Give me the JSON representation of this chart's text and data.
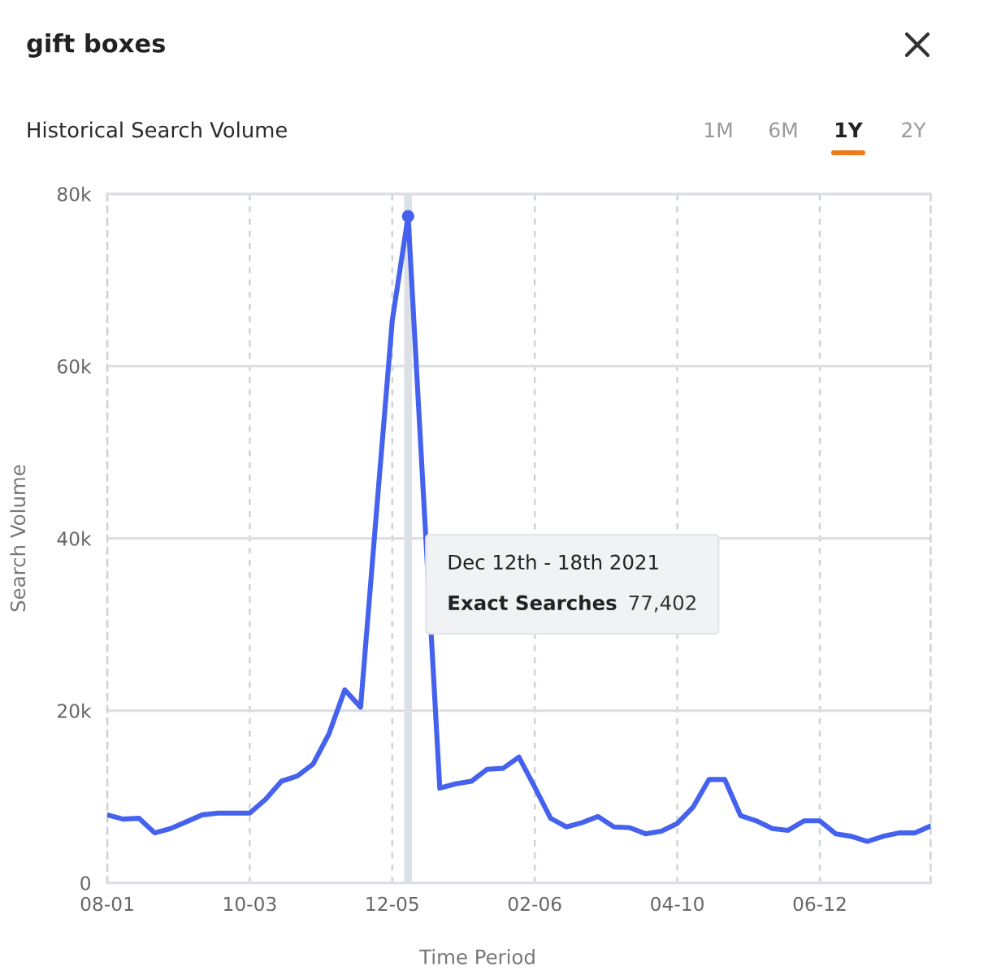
{
  "chart_data": {
    "type": "line",
    "title": "gift boxes",
    "subtitle": "Historical Search Volume",
    "xlabel": "Time Period",
    "ylabel": "Search Volume",
    "x": [
      "2021-08-01",
      "2021-08-08",
      "2021-08-15",
      "2021-08-22",
      "2021-08-29",
      "2021-09-05",
      "2021-09-12",
      "2021-09-19",
      "2021-09-26",
      "2021-10-03",
      "2021-10-10",
      "2021-10-17",
      "2021-10-24",
      "2021-10-31",
      "2021-11-07",
      "2021-11-14",
      "2021-11-21",
      "2021-11-28",
      "2021-12-05",
      "2021-12-12",
      "2021-12-19",
      "2021-12-26",
      "2022-01-02",
      "2022-01-09",
      "2022-01-16",
      "2022-01-23",
      "2022-01-30",
      "2022-02-06",
      "2022-02-13",
      "2022-02-20",
      "2022-02-27",
      "2022-03-06",
      "2022-03-13",
      "2022-03-20",
      "2022-03-27",
      "2022-04-03",
      "2022-04-10",
      "2022-04-17",
      "2022-04-24",
      "2022-05-01",
      "2022-05-08",
      "2022-05-15",
      "2022-05-22",
      "2022-05-29",
      "2022-06-05",
      "2022-06-12",
      "2022-06-19",
      "2022-06-26",
      "2022-07-03",
      "2022-07-10",
      "2022-07-17",
      "2022-07-24",
      "2022-07-31"
    ],
    "series": [
      {
        "color": "#4562ee",
        "values": [
          7900,
          7400,
          7500,
          5800,
          6300,
          7100,
          7900,
          8100,
          8100,
          8100,
          9700,
          11800,
          12400,
          13800,
          17300,
          22400,
          20400,
          43000,
          65300,
          77402,
          44000,
          11000,
          11500,
          11800,
          13200,
          13300,
          14600,
          11100,
          7500,
          6500,
          7000,
          7700,
          6500,
          6400,
          5700,
          6000,
          6900,
          8800,
          12000,
          12000,
          7800,
          7200,
          6300,
          6100,
          7200,
          7200,
          5700,
          5400,
          4800,
          5400,
          5800,
          5800,
          6600
        ]
      }
    ],
    "xlim": [
      "2021-08-01",
      "2022-07-31"
    ],
    "xticks": [
      {
        "value": "2021-08-01",
        "label": "08-01"
      },
      {
        "value": "2021-10-03",
        "label": "10-03"
      },
      {
        "value": "2021-12-05",
        "label": "12-05"
      },
      {
        "value": "2022-02-06",
        "label": "02-06"
      },
      {
        "value": "2022-04-10",
        "label": "04-10"
      },
      {
        "value": "2022-06-12",
        "label": "06-12"
      }
    ],
    "ylim": [
      0,
      80000
    ],
    "yticks": [
      0,
      {
        "value": 20000,
        "label": "20k"
      },
      {
        "value": 40000,
        "label": "40k"
      },
      {
        "value": 60000,
        "label": "60k"
      },
      {
        "value": 80000,
        "label": "80k"
      }
    ],
    "grid": true,
    "ref_lines": [
      {
        "axis": "x",
        "value": "2021-12-12",
        "color": "#dde1e6"
      }
    ],
    "annotations": [
      "1M",
      "6M",
      "1Y",
      "2Y",
      "Dec 12th - 18th 2021",
      "Exact Searches",
      "77,402"
    ]
  }
}
